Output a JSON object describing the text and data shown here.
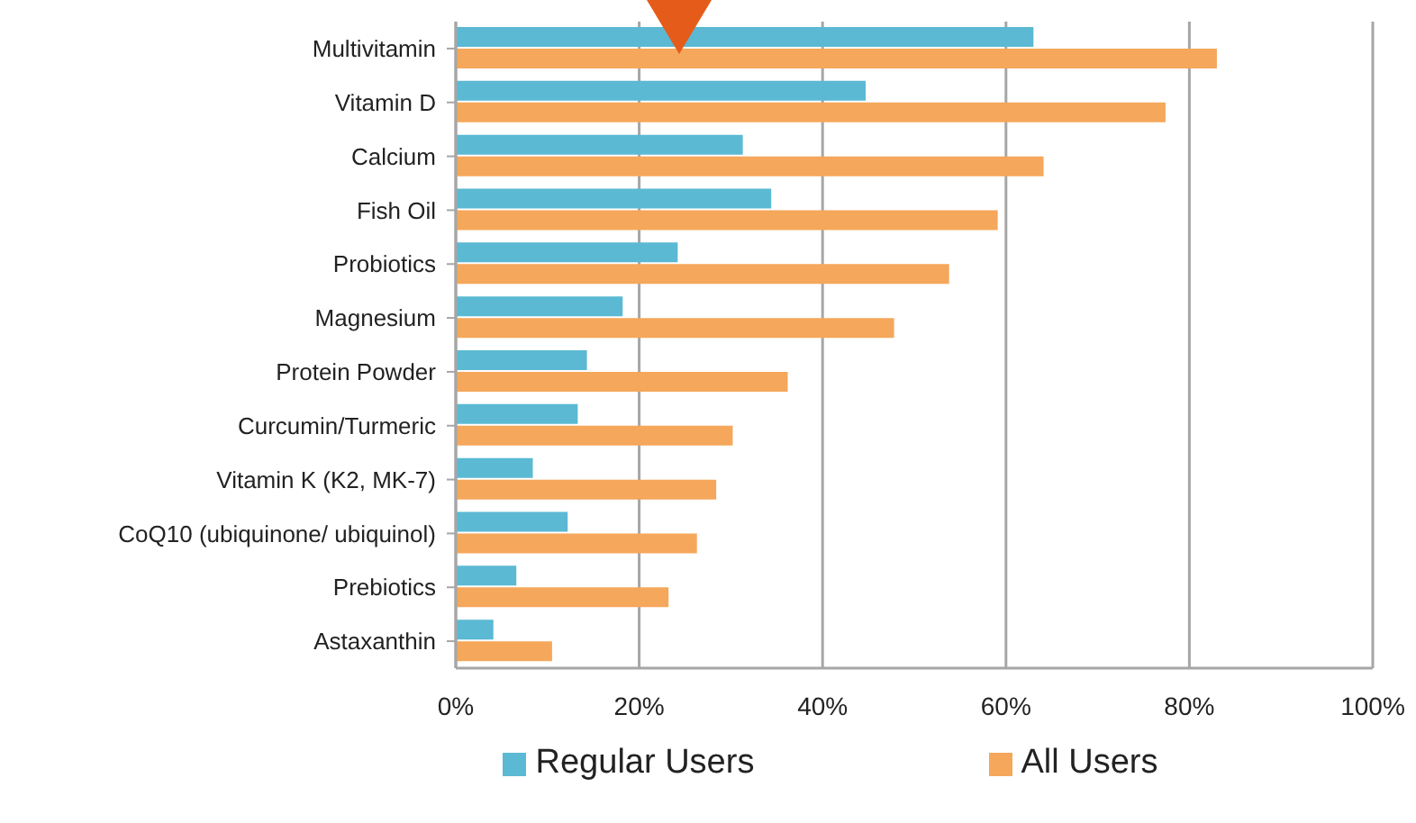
{
  "chart_data": {
    "type": "bar",
    "orientation": "horizontal",
    "categories": [
      "Multivitamin",
      "Vitamin D",
      "Calcium",
      "Fish Oil",
      "Probiotics",
      "Magnesium",
      "Protein Powder",
      "Curcumin/Turmeric",
      "Vitamin K (K2, MK-7)",
      "CoQ10 (ubiquinone/ ubiquinol)",
      "Prebiotics",
      "Astaxanthin"
    ],
    "series": [
      {
        "name": "Regular Users",
        "color": "#5bb9d3",
        "values": [
          63,
          44.7,
          31.3,
          34.4,
          24.2,
          18.2,
          14.3,
          13.3,
          8.4,
          12.2,
          6.6,
          4.1
        ]
      },
      {
        "name": "All Users",
        "color": "#f5a75b",
        "values": [
          83,
          77.4,
          64.1,
          59.1,
          53.8,
          47.8,
          36.2,
          30.2,
          28.4,
          26.3,
          23.2,
          10.5
        ]
      }
    ],
    "xlim": [
      0,
      100
    ],
    "xticks": [
      {
        "value": 0,
        "label": "0%"
      },
      {
        "value": 20,
        "label": "20%"
      },
      {
        "value": 40,
        "label": "40%"
      },
      {
        "value": 60,
        "label": "60%"
      },
      {
        "value": 80,
        "label": "80%"
      },
      {
        "value": 100,
        "label": "100%"
      }
    ],
    "grid": "x",
    "legend": "bottom"
  }
}
